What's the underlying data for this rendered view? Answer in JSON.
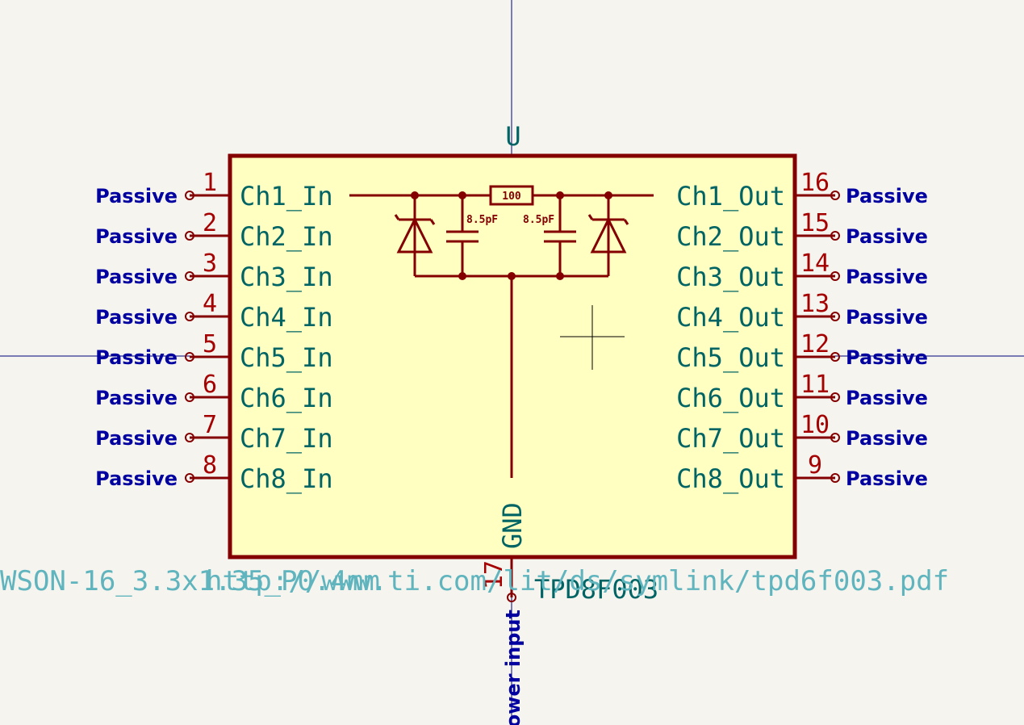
{
  "symbol": {
    "reference": "U",
    "value": "TPD8F003",
    "footprint": "WSON-16_3.3x1.35_P0.4mm",
    "datasheet": "http://www.ti.com/lit/ds/symlink/tpd6f003.pdf"
  },
  "left_pins": [
    {
      "number": "1",
      "name": "Ch1_In",
      "type": "Passive"
    },
    {
      "number": "2",
      "name": "Ch2_In",
      "type": "Passive"
    },
    {
      "number": "3",
      "name": "Ch3_In",
      "type": "Passive"
    },
    {
      "number": "4",
      "name": "Ch4_In",
      "type": "Passive"
    },
    {
      "number": "5",
      "name": "Ch5_In",
      "type": "Passive"
    },
    {
      "number": "6",
      "name": "Ch6_In",
      "type": "Passive"
    },
    {
      "number": "7",
      "name": "Ch7_In",
      "type": "Passive"
    },
    {
      "number": "8",
      "name": "Ch8_In",
      "type": "Passive"
    }
  ],
  "right_pins": [
    {
      "number": "16",
      "name": "Ch1_Out",
      "type": "Passive"
    },
    {
      "number": "15",
      "name": "Ch2_Out",
      "type": "Passive"
    },
    {
      "number": "14",
      "name": "Ch3_Out",
      "type": "Passive"
    },
    {
      "number": "13",
      "name": "Ch4_Out",
      "type": "Passive"
    },
    {
      "number": "12",
      "name": "Ch5_Out",
      "type": "Passive"
    },
    {
      "number": "11",
      "name": "Ch6_Out",
      "type": "Passive"
    },
    {
      "number": "10",
      "name": "Ch7_Out",
      "type": "Passive"
    },
    {
      "number": "9",
      "name": "Ch8_Out",
      "type": "Passive"
    }
  ],
  "bottom_pin": {
    "number": "17",
    "name": "GND",
    "type": "Power input"
  },
  "internal_circuit": {
    "resistor_label": "100",
    "cap_left_label": "8.5pF",
    "cap_right_label": "8.5pF"
  },
  "colors": {
    "background": "#f5f4ef",
    "body_fill": "#ffffc2",
    "body_stroke": "#840000",
    "pin_line": "#840000",
    "pin_number": "#a50000",
    "pin_name": "#006464",
    "pin_type": "#0000a0",
    "field_text": "#5fb4be",
    "crosshair": "#00007a"
  }
}
